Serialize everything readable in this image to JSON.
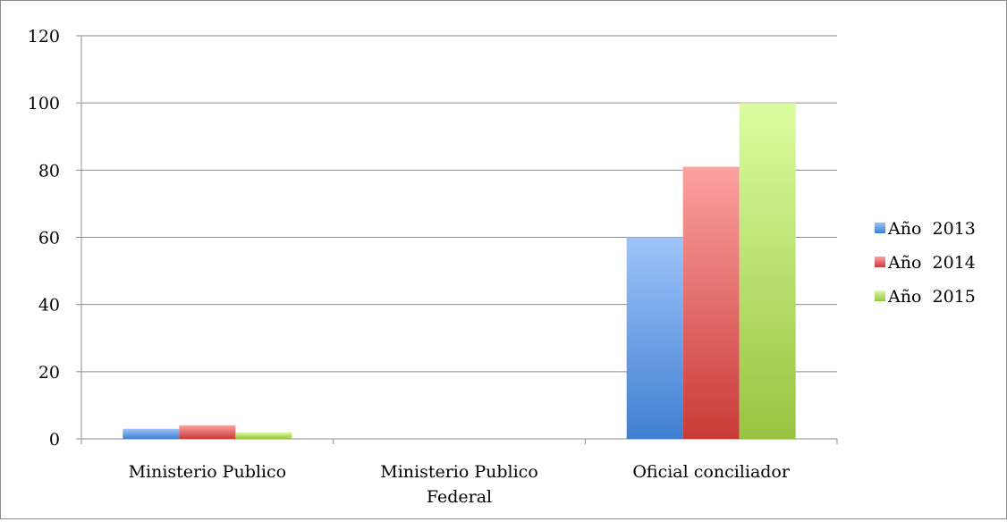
{
  "chart_data": {
    "type": "bar",
    "categories": [
      [
        "Ministerio Publico"
      ],
      [
        "Ministerio Publico",
        "Federal"
      ],
      [
        "Oficial conciliador"
      ]
    ],
    "series": [
      {
        "name": "Año  2013",
        "values": [
          3,
          0,
          60
        ],
        "color_top": "#9fc4fb",
        "color_bottom": "#3f7fd0"
      },
      {
        "name": "Año  2014",
        "values": [
          4,
          0,
          81
        ],
        "color_top": "#fca1a0",
        "color_bottom": "#c93a36"
      },
      {
        "name": "Año  2015",
        "values": [
          2,
          0,
          100
        ],
        "color_top": "#dcfda0",
        "color_bottom": "#98c440"
      }
    ],
    "ylim": [
      0,
      120
    ],
    "yticks": [
      "0",
      "20",
      "40",
      "60",
      "80",
      "100",
      "120"
    ],
    "grid": true,
    "legend_position": "right",
    "title": "",
    "xlabel": "",
    "ylabel": ""
  }
}
